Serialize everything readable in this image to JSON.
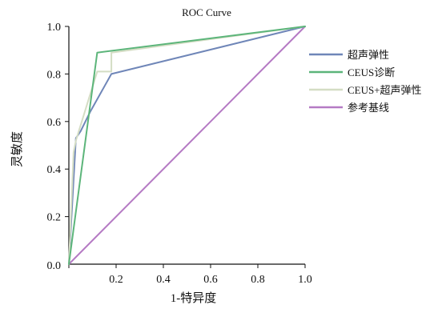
{
  "chart_data": {
    "type": "line",
    "title": "ROC Curve",
    "xlabel": "1-特异度",
    "ylabel": "灵敏度",
    "xlim": [
      0,
      1
    ],
    "ylim": [
      0,
      1
    ],
    "x_ticks": [
      "0.0",
      "0.2",
      "0.4",
      "0.6",
      "0.8",
      "1.0"
    ],
    "y_ticks": [
      "0.0",
      "0.2",
      "0.4",
      "0.6",
      "0.8",
      "1.0"
    ],
    "grid": false,
    "legend_position": "right",
    "series": [
      {
        "name": "超声弹性",
        "color": "#6f86b8",
        "points": [
          [
            0,
            0
          ],
          [
            0.03,
            0.53
          ],
          [
            0.05,
            0.56
          ],
          [
            0.09,
            0.64
          ],
          [
            0.18,
            0.8
          ],
          [
            1,
            1
          ]
        ]
      },
      {
        "name": "CEUS诊断",
        "color": "#5cb57a",
        "points": [
          [
            0,
            0
          ],
          [
            0.12,
            0.89
          ],
          [
            1,
            1
          ]
        ]
      },
      {
        "name": "CEUS+超声弹性",
        "color": "#d4ddc4",
        "points": [
          [
            0,
            0
          ],
          [
            0.02,
            0.47
          ],
          [
            0.03,
            0.52
          ],
          [
            0.12,
            0.81
          ],
          [
            0.18,
            0.81
          ],
          [
            0.18,
            0.89
          ],
          [
            1,
            1
          ]
        ]
      },
      {
        "name": "参考基线",
        "color": "#b57ac4",
        "points": [
          [
            0,
            0
          ],
          [
            1,
            1
          ]
        ]
      }
    ]
  }
}
